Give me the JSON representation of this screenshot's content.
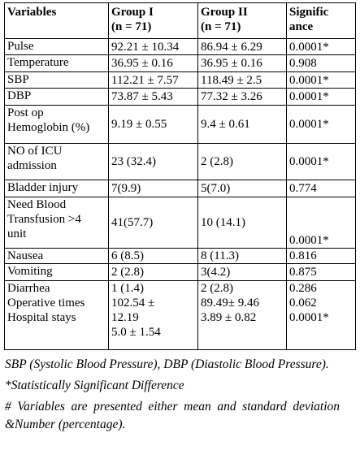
{
  "table": {
    "header": [
      [
        "Variables"
      ],
      [
        "Group I",
        "(n = 71)"
      ],
      [
        "Group II",
        "(n = 71)"
      ],
      [
        "Signific",
        "ance"
      ]
    ],
    "rows": [
      [
        [
          "Pulse"
        ],
        [
          "92.21 ± 10.34"
        ],
        [
          "86.94 ± 6.29"
        ],
        [
          "0.0001*"
        ]
      ],
      [
        [
          "Temperature"
        ],
        [
          "36.95 ± 0.16"
        ],
        [
          "36.95 ± 0.16"
        ],
        [
          "0.908"
        ]
      ],
      [
        [
          "SBP"
        ],
        [
          "112.21 ± 7.57"
        ],
        [
          "118.49 ± 2.5"
        ],
        [
          "0.0001*"
        ]
      ],
      [
        [
          "DBP"
        ],
        [
          "73.87 ± 5.43"
        ],
        [
          "77.32 ± 3.26"
        ],
        [
          "0.0001*"
        ]
      ],
      [
        [
          "Post op",
          "Hemoglobin (%)"
        ],
        [
          "9.19 ± 0.55"
        ],
        [
          "9.4 ± 0.61"
        ],
        [
          "0.0001*"
        ]
      ],
      [
        [
          "NO of ICU",
          "admission"
        ],
        [
          "23 (32.4)"
        ],
        [
          "2 (2.8)"
        ],
        [
          "0.0001*"
        ]
      ],
      [
        [
          "Bladder injury"
        ],
        [
          "7(9.9)"
        ],
        [
          "5(7.0)"
        ],
        [
          "0.774"
        ]
      ],
      [
        [
          "Need Blood",
          "Transfusion >4",
          "unit"
        ],
        [
          "41(57.7)"
        ],
        [
          "10 (14.1)"
        ],
        [
          "0.0001*"
        ]
      ],
      [
        [
          "Nausea"
        ],
        [
          "6 (8.5)"
        ],
        [
          "8 (11.3)"
        ],
        [
          "0.816"
        ]
      ],
      [
        [
          "Vomiting"
        ],
        [
          "2 (2.8)"
        ],
        [
          "3(4.2)"
        ],
        [
          "0.875"
        ]
      ],
      [
        [
          "Diarrhea",
          "Operative times",
          "Hospital stays"
        ],
        [
          "1 (1.4)",
          "102.54 ±",
          "12.19",
          "5.0 ± 1.54"
        ],
        [
          "2 (2.8)",
          "89.49± 9.46",
          "3.89 ± 0.82"
        ],
        [
          "0.286",
          "0.062",
          "0.0001*"
        ]
      ]
    ]
  },
  "notes": [
    "SBP (Systolic Blood Pressure), DBP (Diastolic Blood Pressure).",
    "*Statistically Significant Difference",
    "# Variables are presented either mean and standard deviation &Number (percentage)."
  ]
}
